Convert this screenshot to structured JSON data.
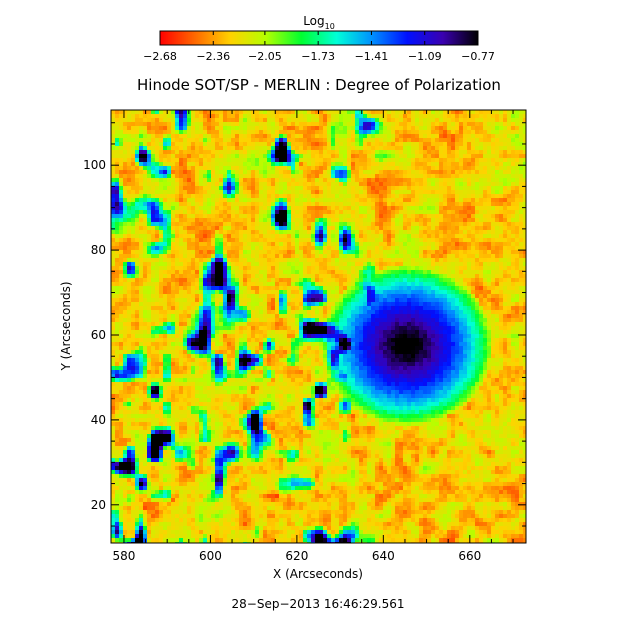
{
  "chart_data": {
    "type": "heatmap",
    "title": "Hinode SOT/SP - MERLIN : Degree of Polarization",
    "xlabel": "X (Arcseconds)",
    "ylabel": "Y (Arcseconds)",
    "xlim": [
      577,
      673
    ],
    "ylim": [
      11,
      113
    ],
    "x_ticks": [
      580,
      600,
      620,
      640,
      660
    ],
    "y_ticks": [
      20,
      40,
      60,
      80,
      100
    ],
    "x_tick_labels": [
      "580",
      "600",
      "620",
      "640",
      "660"
    ],
    "y_tick_labels": [
      "20",
      "40",
      "60",
      "80",
      "100"
    ],
    "colorbar": {
      "label_base": "Log",
      "label_sub": "10",
      "range": [
        -2.68,
        -0.77
      ],
      "ticks": [
        -2.68,
        -2.36,
        -2.05,
        -1.73,
        -1.41,
        -1.09,
        -0.77
      ],
      "tick_labels": [
        "−2.68",
        "−2.36",
        "−2.05",
        "−1.73",
        "−1.41",
        "−1.09",
        "−0.77"
      ],
      "colormap": [
        "#ff0000",
        "#ff6a00",
        "#ffd200",
        "#b4ff00",
        "#00ff30",
        "#00ffd8",
        "#0090ff",
        "#0010ff",
        "#3a00b0",
        "#000000"
      ]
    },
    "features": [
      {
        "kind": "sunspot_core",
        "x": 645,
        "y": 58,
        "value": -0.77
      },
      {
        "kind": "network_patches",
        "x_range": [
          577,
          632
        ],
        "y_range": [
          11,
          113
        ],
        "value": -1.4
      },
      {
        "kind": "background",
        "value": -2.5
      }
    ]
  },
  "footer": {
    "timestamp": "28−Sep−2013 16:46:29.561"
  }
}
